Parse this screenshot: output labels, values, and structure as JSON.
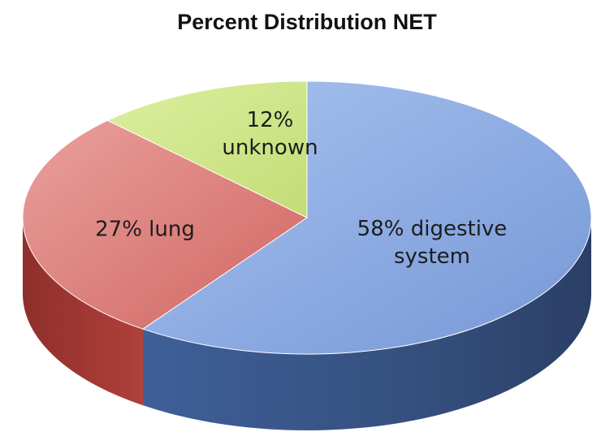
{
  "chart_data": {
    "type": "pie",
    "title": "Percent Distribution NET",
    "slices": [
      {
        "label": "58% digestive system",
        "label_lines": [
          "58% digestive",
          "system"
        ],
        "value": 58,
        "color": "#7f9fd9"
      },
      {
        "label": "27% lung",
        "label_lines": [
          "27% lung"
        ],
        "value": 27,
        "color": "#d9706d"
      },
      {
        "label": "12% unknown",
        "label_lines": [
          "12%",
          "unknown"
        ],
        "value": 12,
        "color": "#c8e07a"
      }
    ],
    "style": "3d",
    "legend": "none"
  }
}
